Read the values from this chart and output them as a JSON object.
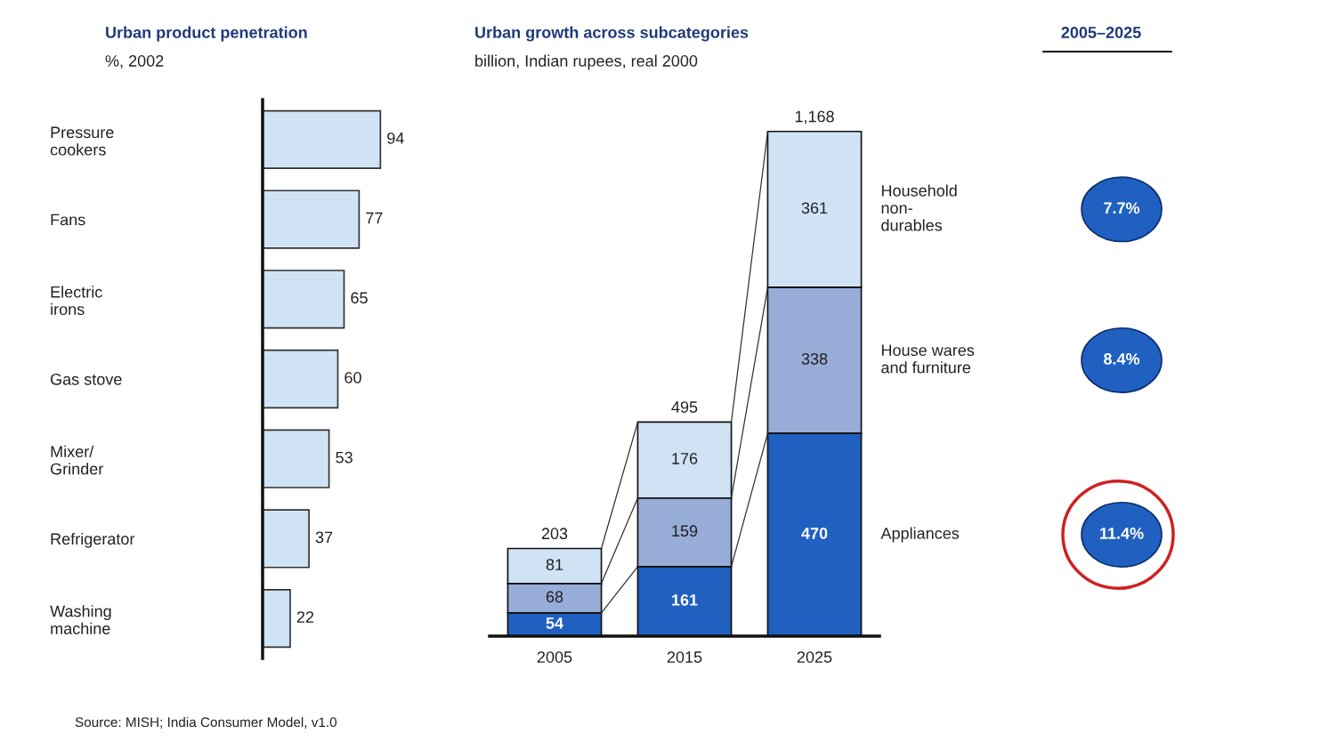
{
  "chart_data": [
    {
      "type": "bar",
      "title": "Urban product penetration",
      "subtitle": "%, 2002",
      "orientation": "horizontal",
      "data_labels": true,
      "categories": [
        "Pressure\ncookers",
        "Fans",
        "Electric\nirons",
        "Gas stove",
        "Mixer/\nGrinder",
        "Refrigerator",
        "Washing\nmachine"
      ],
      "values": [
        94,
        77,
        65,
        60,
        53,
        37,
        22
      ],
      "color": "#cfe3f5",
      "annotations": [
        "Source: MISH; India Consumer Model, v1.0"
      ]
    },
    {
      "type": "bar",
      "title": "Urban growth across subcategories",
      "subtitle": "billion, Indian rupees, real 2000",
      "stacked": true,
      "data_labels": true,
      "categories": [
        "2005",
        "2015",
        "2025"
      ],
      "series": [
        {
          "name": "Appliances",
          "color": "#2060c0",
          "values": [
            54,
            161,
            470
          ]
        },
        {
          "name": "House wares\nand furniture",
          "color": "#98acd8",
          "values": [
            68,
            159,
            338
          ]
        },
        {
          "name": "Household\nnon-\ndurables",
          "color": "#cfe3f5",
          "values": [
            81,
            176,
            361
          ]
        }
      ],
      "totals": [
        "203",
        "495",
        "1,168"
      ]
    },
    {
      "type": "other",
      "title": "2005–2025",
      "annotations": [
        "7.7%",
        "8.4%",
        "11.4%"
      ]
    }
  ]
}
